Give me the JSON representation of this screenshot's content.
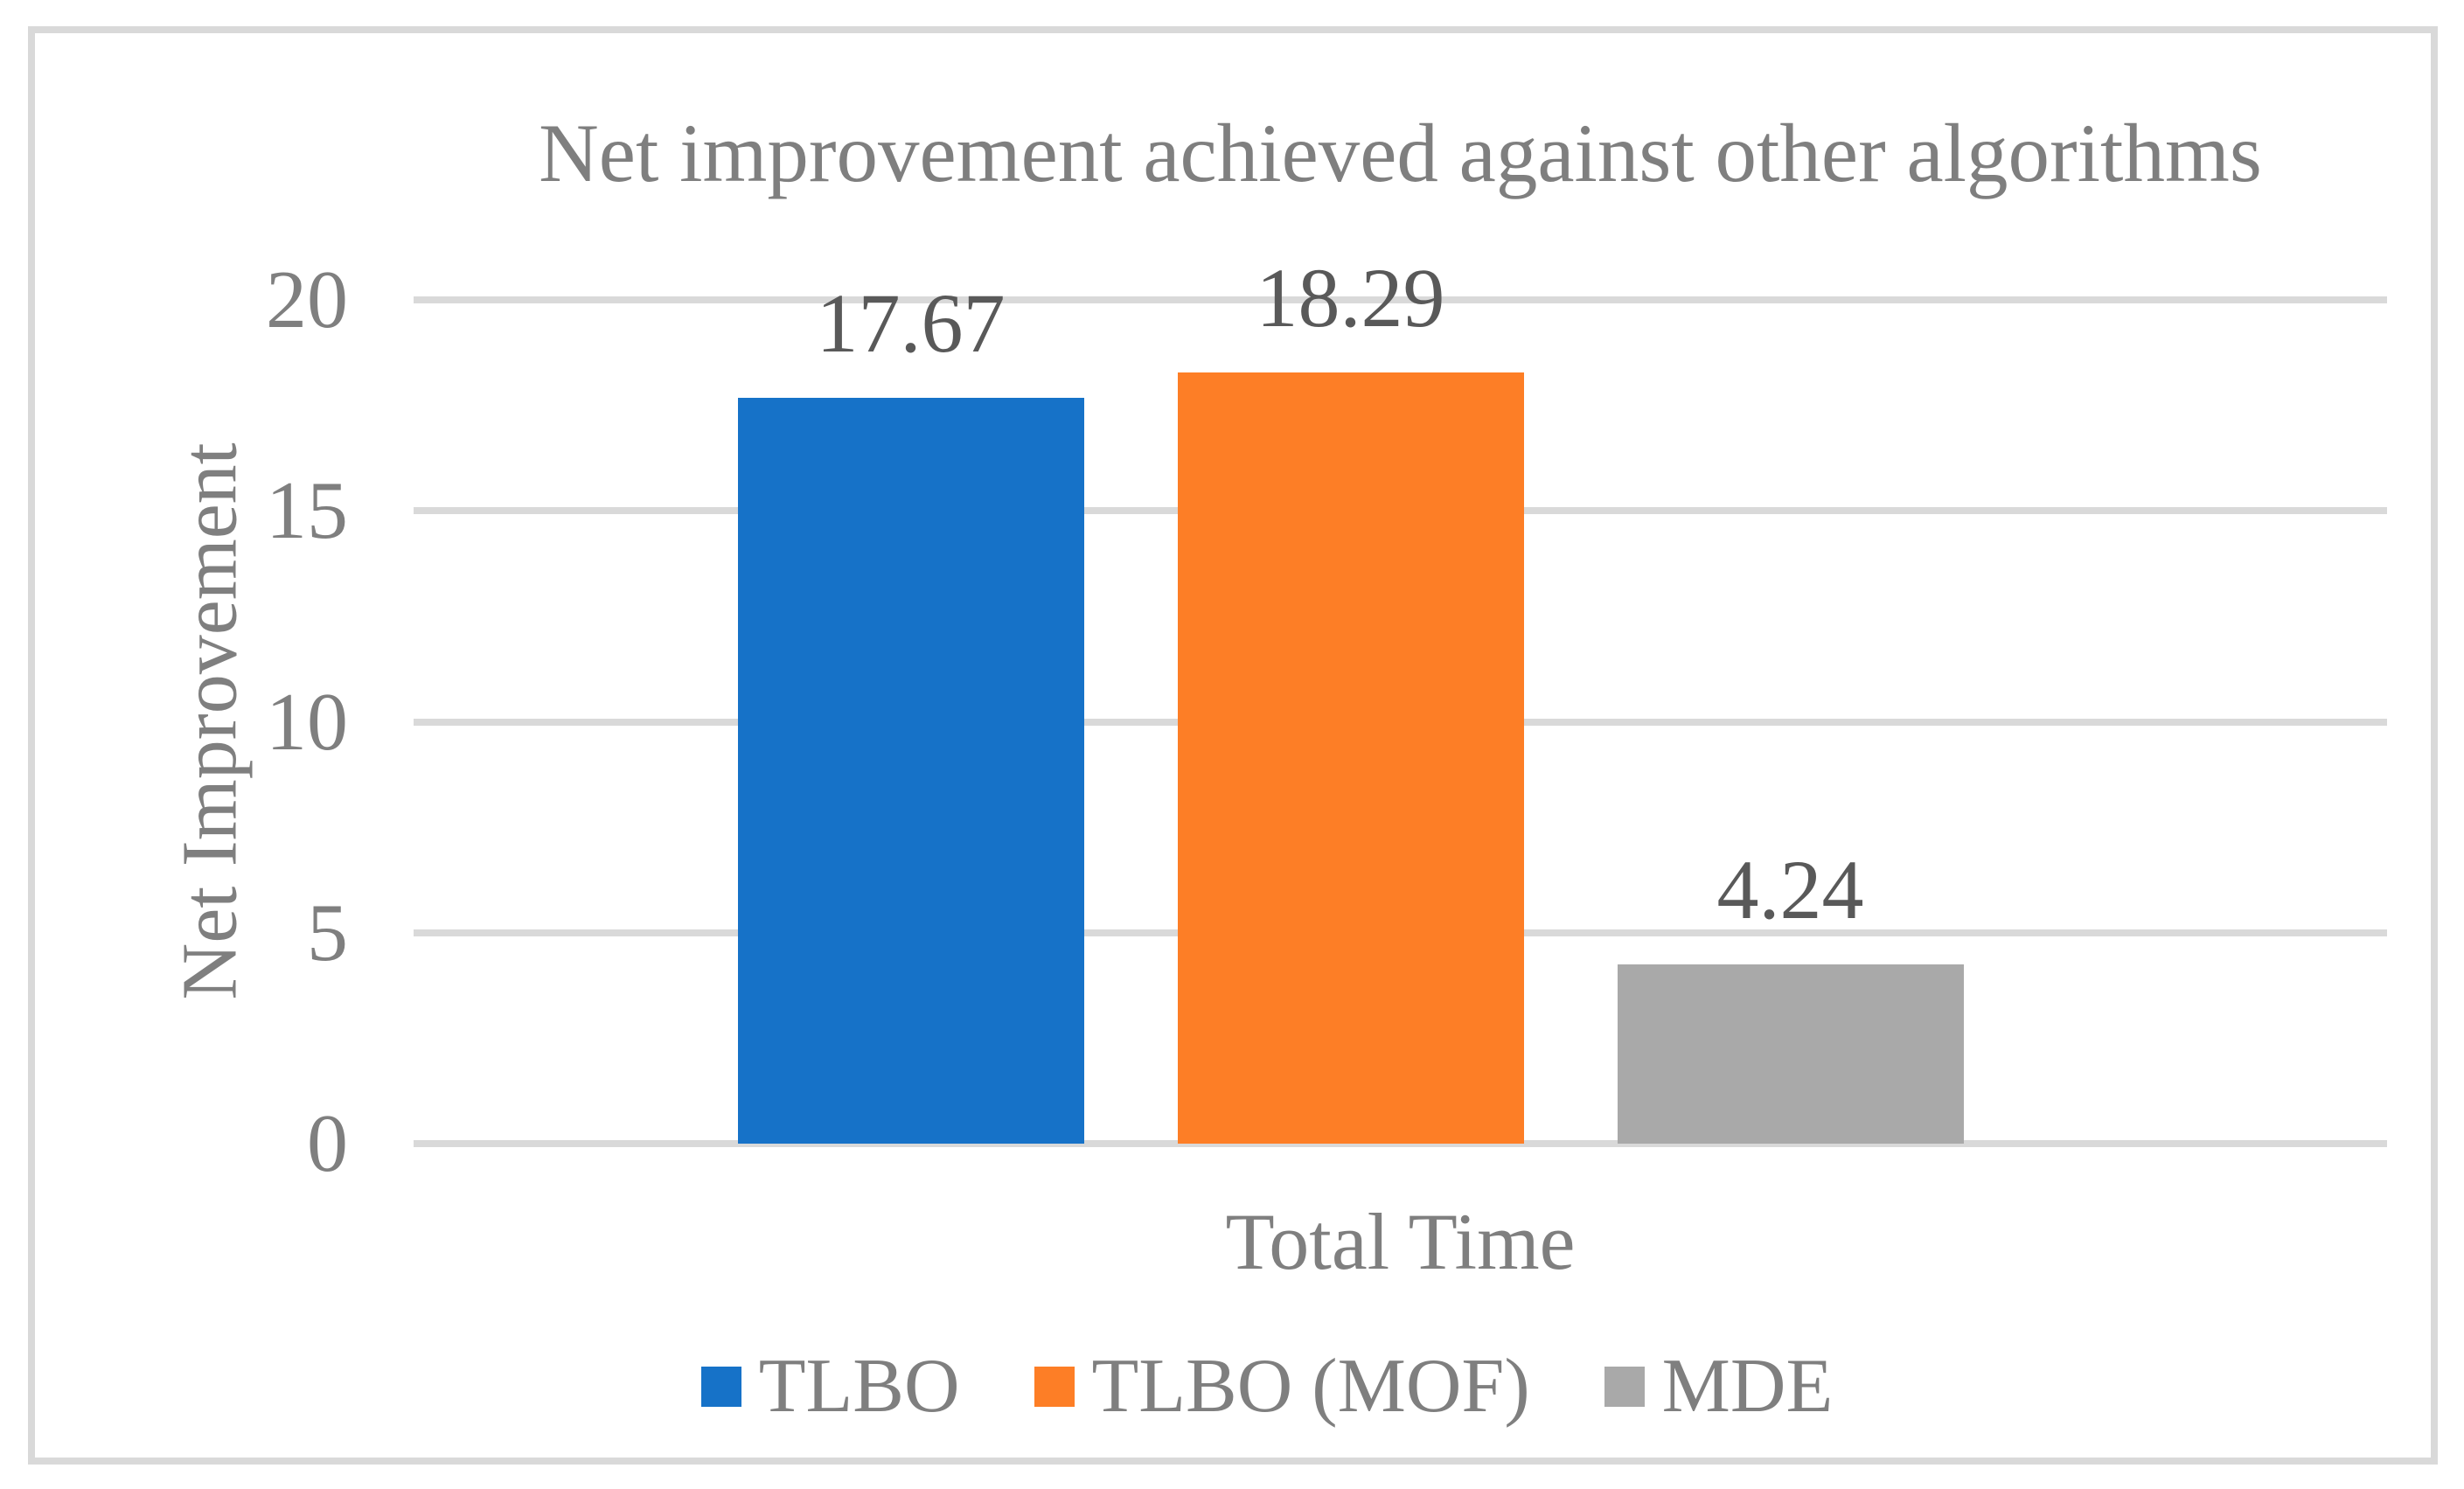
{
  "chart_data": {
    "type": "bar",
    "title": "Net improvement achieved against other algorithms",
    "ylabel": "Net Improvement",
    "xlabel": "",
    "categories": [
      "Total Time"
    ],
    "series": [
      {
        "name": "TLBO",
        "values": [
          17.67
        ],
        "color": "#1672C8"
      },
      {
        "name": "TLBO (MOF)",
        "values": [
          18.29
        ],
        "color": "#FD7E26"
      },
      {
        "name": "MDE",
        "values": [
          4.24
        ],
        "color": "#A9A9A9"
      }
    ],
    "data_labels": [
      "17.67",
      "18.29",
      "4.24"
    ],
    "ylim": [
      0,
      20
    ],
    "yticks": [
      0,
      5,
      10,
      15,
      20
    ],
    "grid": "horizontal",
    "legend_position": "bottom",
    "gridline_color": "#D9D9D9",
    "frame_border_color": "#D9D9D9",
    "title_color": "#7F7F7F",
    "data_label_color": "#595959"
  }
}
